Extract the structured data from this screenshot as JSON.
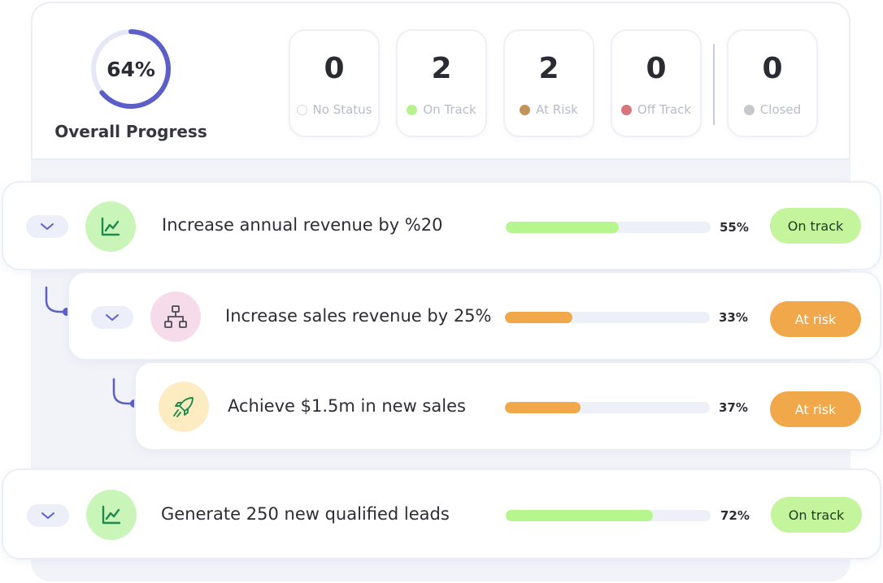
{
  "overall": {
    "percent_label": "64%",
    "percent_value": 0.64,
    "label": "Overall Progress"
  },
  "stats": [
    {
      "count": "0",
      "label": "No Status",
      "dot_color": "#ffffff"
    },
    {
      "count": "2",
      "label": "On Track",
      "dot_color": "#b7f28f"
    },
    {
      "count": "2",
      "label": "At Risk",
      "dot_color": "#c2935a"
    },
    {
      "count": "0",
      "label": "Off Track",
      "dot_color": "#d9757c"
    },
    {
      "count": "0",
      "label": "Closed",
      "dot_color": "#c7c8cc"
    }
  ],
  "objectives": [
    {
      "title": "Increase annual revenue by %20",
      "progress_label": "55%",
      "progress": 0.55,
      "status": "On track",
      "icon": "line-chart-icon"
    },
    {
      "title": "Increase sales revenue by 25%",
      "progress_label": "33%",
      "progress": 0.33,
      "status": "At risk",
      "icon": "org-chart-icon"
    },
    {
      "title": "Achieve $1.5m in new sales",
      "progress_label": "37%",
      "progress": 0.37,
      "status": "At risk",
      "icon": "rocket-icon"
    },
    {
      "title": "Generate 250 new qualified leads",
      "progress_label": "72%",
      "progress": 0.72,
      "status": "On track",
      "icon": "line-chart-icon"
    }
  ],
  "colors": {
    "accent": "#5b5fc7",
    "ring_track": "#e6e7f6",
    "on_track_fill": "#b7f58f",
    "at_risk_fill": "#f0a84a",
    "on_track_pill": "#c4f59c",
    "at_risk_pill": "#f0a84a",
    "green_icon_bg": "#c9f5b8",
    "pink_icon_bg": "#f6dcea",
    "yellow_icon_bg": "#fdecc2"
  }
}
